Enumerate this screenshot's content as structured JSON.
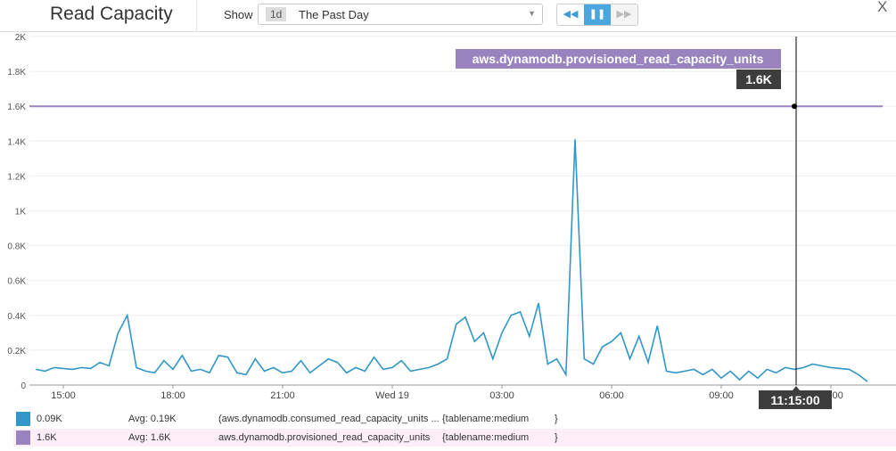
{
  "header": {
    "title": "Read Capacity",
    "show_label": "Show",
    "range_badge": "1d",
    "range_label": "The Past Day",
    "close_label": "X",
    "controls": [
      {
        "icon": "rewind-icon",
        "glyph": "◀◀"
      },
      {
        "icon": "pause-icon",
        "glyph": "❚❚"
      },
      {
        "icon": "fast-forward-icon",
        "glyph": "▶▶"
      }
    ]
  },
  "colors": {
    "consumed": "#3196c8",
    "provisioned": "#9a84c0",
    "cursor": "#000",
    "tooltip_bg": "#3d3d3d"
  },
  "chart_data": {
    "type": "line",
    "ylim": [
      0,
      2000
    ],
    "y_ticks": [
      "0",
      "0.2K",
      "0.4K",
      "0.6K",
      "0.8K",
      "1K",
      "1.2K",
      "1.4K",
      "1.6K",
      "1.8K",
      "2K"
    ],
    "x_ticks": [
      "15:00",
      "18:00",
      "21:00",
      "Wed 19",
      "03:00",
      "06:00",
      "09:00",
      "12:00"
    ],
    "grid": true,
    "series": [
      {
        "name": "aws.dynamodb.provisioned_read_capacity_units",
        "color": "#9a84c0",
        "constant": 1600
      },
      {
        "name": "aws.dynamodb.consumed_read_capacity_units",
        "color": "#3196c8",
        "points": [
          [
            "14:15",
            90
          ],
          [
            "14:30",
            80
          ],
          [
            "14:45",
            100
          ],
          [
            "15:00",
            95
          ],
          [
            "15:15",
            90
          ],
          [
            "15:30",
            100
          ],
          [
            "15:45",
            95
          ],
          [
            "16:00",
            130
          ],
          [
            "16:15",
            110
          ],
          [
            "16:30",
            300
          ],
          [
            "16:45",
            400
          ],
          [
            "17:00",
            100
          ],
          [
            "17:15",
            80
          ],
          [
            "17:30",
            70
          ],
          [
            "17:45",
            140
          ],
          [
            "18:00",
            90
          ],
          [
            "18:15",
            170
          ],
          [
            "18:30",
            80
          ],
          [
            "18:45",
            90
          ],
          [
            "19:00",
            70
          ],
          [
            "19:15",
            170
          ],
          [
            "19:30",
            160
          ],
          [
            "19:45",
            70
          ],
          [
            "20:00",
            60
          ],
          [
            "20:15",
            150
          ],
          [
            "20:30",
            80
          ],
          [
            "20:45",
            100
          ],
          [
            "21:00",
            70
          ],
          [
            "21:15",
            80
          ],
          [
            "21:30",
            140
          ],
          [
            "21:45",
            70
          ],
          [
            "22:00",
            110
          ],
          [
            "22:15",
            150
          ],
          [
            "22:30",
            130
          ],
          [
            "22:45",
            70
          ],
          [
            "23:00",
            100
          ],
          [
            "23:15",
            80
          ],
          [
            "23:30",
            160
          ],
          [
            "23:45",
            90
          ],
          [
            "00:00",
            100
          ],
          [
            "00:15",
            140
          ],
          [
            "00:30",
            80
          ],
          [
            "00:45",
            90
          ],
          [
            "01:00",
            100
          ],
          [
            "01:15",
            120
          ],
          [
            "01:30",
            150
          ],
          [
            "01:45",
            350
          ],
          [
            "02:00",
            390
          ],
          [
            "02:15",
            250
          ],
          [
            "02:30",
            300
          ],
          [
            "02:45",
            150
          ],
          [
            "03:00",
            300
          ],
          [
            "03:15",
            400
          ],
          [
            "03:30",
            420
          ],
          [
            "03:45",
            280
          ],
          [
            "04:00",
            470
          ],
          [
            "04:15",
            120
          ],
          [
            "04:30",
            150
          ],
          [
            "04:45",
            60
          ],
          [
            "05:00",
            1410
          ],
          [
            "05:15",
            150
          ],
          [
            "05:30",
            120
          ],
          [
            "05:45",
            220
          ],
          [
            "06:00",
            250
          ],
          [
            "06:15",
            300
          ],
          [
            "06:30",
            150
          ],
          [
            "06:45",
            280
          ],
          [
            "07:00",
            130
          ],
          [
            "07:15",
            340
          ],
          [
            "07:30",
            80
          ],
          [
            "07:45",
            70
          ],
          [
            "08:00",
            80
          ],
          [
            "08:15",
            90
          ],
          [
            "08:30",
            60
          ],
          [
            "08:45",
            90
          ],
          [
            "09:00",
            40
          ],
          [
            "09:15",
            80
          ],
          [
            "09:30",
            30
          ],
          [
            "09:45",
            80
          ],
          [
            "10:00",
            40
          ],
          [
            "10:15",
            90
          ],
          [
            "10:30",
            70
          ],
          [
            "10:45",
            100
          ],
          [
            "11:00",
            90
          ],
          [
            "11:15",
            100
          ],
          [
            "11:30",
            120
          ],
          [
            "11:45",
            110
          ],
          [
            "12:00",
            100
          ],
          [
            "12:15",
            95
          ],
          [
            "12:30",
            90
          ],
          [
            "12:45",
            60
          ],
          [
            "13:00",
            20
          ]
        ]
      }
    ],
    "annotation": {
      "series_label": "aws.dynamodb.provisioned_read_capacity_units",
      "value_label": "1.6K",
      "time_label": "11:15:00"
    }
  },
  "legend": [
    {
      "value": "0.09K",
      "avg": "Avg: 0.19K",
      "metric": "(aws.dynamodb.consumed_read_capacity_units ...",
      "tags": "{tablename:medium",
      "close": "}"
    },
    {
      "value": "1.6K",
      "avg": "Avg: 1.6K",
      "metric": "aws.dynamodb.provisioned_read_capacity_units",
      "tags": "{tablename:medium",
      "close": "}"
    }
  ]
}
